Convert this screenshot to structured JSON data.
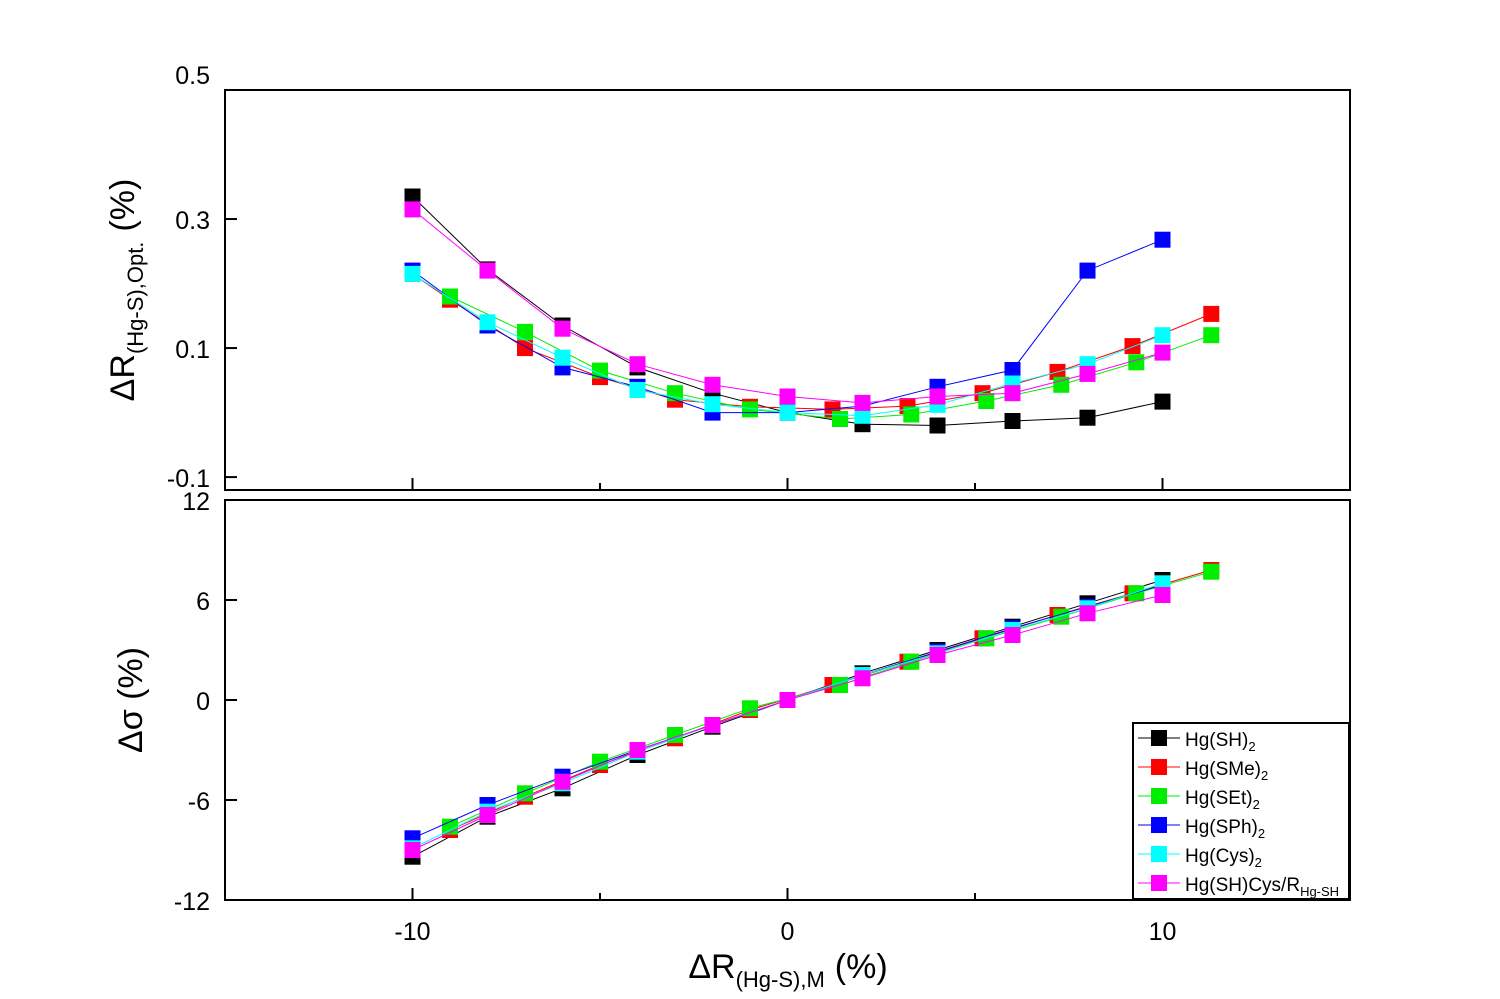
{
  "chart_data": [
    {
      "type": "line",
      "panel": "top",
      "title": "",
      "ylabel_base": "ΔR",
      "ylabel_sub": "(Hg-S),Opt.",
      "ylabel_unit": "(%)",
      "ylim": [
        -0.12,
        0.5
      ],
      "yticks": [
        -0.1,
        0.1,
        0.3,
        0.5
      ],
      "ytick_labels": [
        "-0.1",
        "0.1",
        "0.3",
        "0.5"
      ],
      "xlim": [
        -15,
        15
      ],
      "series": [
        {
          "name": "Hg(SH)2",
          "color": "#000000",
          "x": [
            -10,
            -8,
            -6,
            -4,
            -2,
            0,
            2,
            4,
            6,
            8,
            10
          ],
          "y": [
            0.335,
            0.222,
            0.135,
            0.07,
            0.03,
            0.0,
            -0.018,
            -0.02,
            -0.013,
            -0.008,
            0.017
          ]
        },
        {
          "name": "Hg(SMe)2",
          "color": "#ff0000",
          "x": [
            -10,
            -9,
            -7,
            -5,
            -3,
            -1,
            1.2,
            3.2,
            5.2,
            7.2,
            9.2,
            11.3
          ],
          "y": [
            0.215,
            0.175,
            0.1,
            0.055,
            0.02,
            0.009,
            0.005,
            0.01,
            0.03,
            0.063,
            0.103,
            0.153
          ]
        },
        {
          "name": "Hg(SEt)2",
          "color": "#00ee00",
          "x": [
            -9,
            -7,
            -5,
            -3,
            -1,
            1.4,
            3.3,
            5.3,
            7.3,
            9.3,
            11.3
          ],
          "y": [
            0.18,
            0.125,
            0.065,
            0.03,
            0.005,
            -0.01,
            -0.003,
            0.018,
            0.043,
            0.078,
            0.12
          ]
        },
        {
          "name": "Hg(SPh)2",
          "color": "#0000ff",
          "x": [
            -10,
            -8,
            -6,
            -4,
            -2,
            0,
            2,
            4,
            6,
            8,
            10
          ],
          "y": [
            0.22,
            0.135,
            0.07,
            0.04,
            0.0,
            0.0,
            0.01,
            0.04,
            0.066,
            0.22,
            0.268
          ]
        },
        {
          "name": "Hg(Cys)2",
          "color": "#00ffff",
          "x": [
            -10,
            -8,
            -6,
            -4,
            -2,
            0,
            2,
            4,
            6,
            8,
            10
          ],
          "y": [
            0.215,
            0.14,
            0.085,
            0.035,
            0.013,
            0.0,
            -0.005,
            0.012,
            0.045,
            0.075,
            0.12
          ]
        },
        {
          "name": "Hg(SH)Cys/RHg-SH",
          "color": "#ff00ff",
          "x": [
            -10,
            -8,
            -6,
            -4,
            -2,
            0,
            2,
            4,
            6,
            8,
            10
          ],
          "y": [
            0.315,
            0.22,
            0.13,
            0.075,
            0.043,
            0.025,
            0.015,
            0.025,
            0.03,
            0.06,
            0.093
          ]
        }
      ]
    },
    {
      "type": "line",
      "panel": "bottom",
      "title": "",
      "ylabel": "Δσ (%)",
      "xlabel_base": "ΔR",
      "xlabel_sub": "(Hg-S),M",
      "xlabel_unit": "(%)",
      "ylim": [
        -12,
        12
      ],
      "yticks": [
        -12,
        -6,
        0,
        6,
        12
      ],
      "ytick_labels": [
        "-12",
        "-6",
        "0",
        "6",
        "12"
      ],
      "xlim": [
        -15,
        15
      ],
      "xticks": [
        -10,
        0,
        10
      ],
      "xtick_labels": [
        "-10",
        "0",
        "10"
      ],
      "series": [
        {
          "name": "Hg(SH)2",
          "color": "#000000",
          "x": [
            -10,
            -8,
            -6,
            -4,
            -2,
            0,
            2,
            4,
            6,
            8,
            10
          ],
          "y": [
            -9.4,
            -7.0,
            -5.3,
            -3.3,
            -1.6,
            0,
            1.6,
            3.0,
            4.4,
            5.8,
            7.2
          ]
        },
        {
          "name": "Hg(SMe)2",
          "color": "#ff0000",
          "x": [
            -9,
            -7,
            -5,
            -3,
            -1,
            1.2,
            3.2,
            5.2,
            7.2,
            9.2,
            11.3
          ],
          "y": [
            -7.8,
            -5.8,
            -3.9,
            -2.3,
            -0.6,
            0.9,
            2.3,
            3.7,
            5.1,
            6.4,
            7.8
          ]
        },
        {
          "name": "Hg(SEt)2",
          "color": "#00ee00",
          "x": [
            -9,
            -7,
            -5,
            -3,
            -1,
            1.4,
            3.3,
            5.3,
            7.3,
            9.3,
            11.3
          ],
          "y": [
            -7.6,
            -5.6,
            -3.7,
            -2.1,
            -0.5,
            0.9,
            2.3,
            3.7,
            5.0,
            6.4,
            7.7
          ]
        },
        {
          "name": "Hg(SPh)2",
          "color": "#0000ff",
          "x": [
            -10,
            -8,
            -6,
            -4,
            -2,
            0,
            2,
            4,
            6,
            8,
            10
          ],
          "y": [
            -8.3,
            -6.3,
            -4.6,
            -3.0,
            -1.5,
            0,
            1.5,
            2.9,
            4.3,
            5.6,
            6.9
          ]
        },
        {
          "name": "Hg(Cys)2",
          "color": "#00ffff",
          "x": [
            -10,
            -8,
            -6,
            -4,
            -2,
            0,
            2,
            4,
            6,
            8,
            10
          ],
          "y": [
            -8.9,
            -6.7,
            -5.0,
            -3.1,
            -1.5,
            0,
            1.5,
            2.8,
            4.2,
            5.5,
            7.0
          ]
        },
        {
          "name": "Hg(SH)Cys/RHg-SH",
          "color": "#ff00ff",
          "x": [
            -10,
            -8,
            -6,
            -4,
            -2,
            0,
            2,
            4,
            6,
            8,
            10
          ],
          "y": [
            -9.0,
            -6.9,
            -4.9,
            -3.0,
            -1.5,
            0,
            1.3,
            2.7,
            3.9,
            5.2,
            6.3
          ]
        }
      ]
    }
  ],
  "legend": {
    "placement": "bottom-right of lower panel",
    "entries": [
      {
        "label": "Hg(SH)",
        "sub": "2",
        "color": "#000000"
      },
      {
        "label": "Hg(SMe)",
        "sub": "2",
        "color": "#ff0000"
      },
      {
        "label": "Hg(SEt)",
        "sub": "2",
        "color": "#00ee00"
      },
      {
        "label": "Hg(SPh)",
        "sub": "2",
        "color": "#0000ff"
      },
      {
        "label": "Hg(Cys)",
        "sub": "2",
        "color": "#00ffff"
      },
      {
        "label": "Hg(SH)Cys/R",
        "sub": "Hg-SH",
        "color": "#ff00ff"
      }
    ]
  }
}
